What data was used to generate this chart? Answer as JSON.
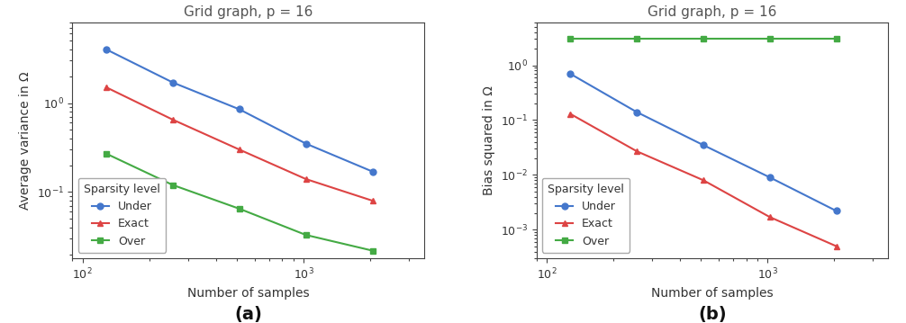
{
  "title": "Grid graph, p = 16",
  "xlabel": "Number of samples",
  "subplot_a": {
    "ylabel": "Average variance in Ω",
    "label": "(a)",
    "x": [
      128,
      256,
      512,
      1024,
      2048
    ],
    "blue_y": [
      4.0,
      1.7,
      0.85,
      0.35,
      0.17
    ],
    "red_y": [
      1.5,
      0.65,
      0.3,
      0.14,
      0.08
    ],
    "green_y": [
      0.27,
      0.12,
      0.065,
      0.033,
      0.022
    ],
    "ylim": [
      0.018,
      8.0
    ],
    "xlim": [
      90,
      3500
    ]
  },
  "subplot_b": {
    "ylabel": "Bias squared in Ω",
    "label": "(b)",
    "x": [
      128,
      256,
      512,
      1024,
      2048
    ],
    "blue_y": [
      0.7,
      0.14,
      0.035,
      0.009,
      0.0022
    ],
    "red_y": [
      0.13,
      0.027,
      0.008,
      0.0017,
      0.0005
    ],
    "green_y": [
      3.0,
      3.0,
      3.0,
      3.0,
      3.0
    ],
    "ylim": [
      0.0003,
      6.0
    ],
    "xlim": [
      90,
      3500
    ]
  },
  "colors": {
    "blue": "#4477CC",
    "red": "#DD4444",
    "green": "#44AA44"
  },
  "legend_title": "Sparsity level",
  "legend_labels": [
    "Under",
    "Exact",
    "Over"
  ],
  "marker_blue": "o",
  "marker_red": "^",
  "marker_green": "s",
  "linewidth": 1.5,
  "markersize": 5,
  "title_fontsize": 11,
  "label_fontsize": 10,
  "legend_fontsize": 9,
  "tick_fontsize": 9,
  "sublabel_fontsize": 14
}
